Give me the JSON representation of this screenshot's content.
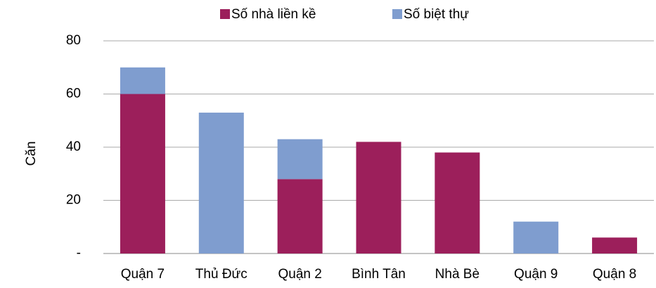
{
  "chart_data": {
    "type": "stacked_bar",
    "categories": [
      "Quận 7",
      "Thủ Đức",
      "Quận 2",
      "Bình Tân",
      "Nhà Bè",
      "Quận 9",
      "Quận 8"
    ],
    "series": [
      {
        "name": "Số nhà liền kề",
        "color": "#9c1f5b",
        "values": [
          60,
          0,
          28,
          42,
          38,
          0,
          6
        ]
      },
      {
        "name": "Số biệt thự",
        "color": "#7f9dcf",
        "values": [
          10,
          53,
          15,
          0,
          0,
          12,
          0
        ]
      }
    ],
    "y_label": "Căn",
    "ylim": [
      0,
      80
    ],
    "yticks": [
      {
        "value": 0,
        "label": "-"
      },
      20,
      40,
      60,
      80
    ],
    "grid": true,
    "legend": "top"
  }
}
